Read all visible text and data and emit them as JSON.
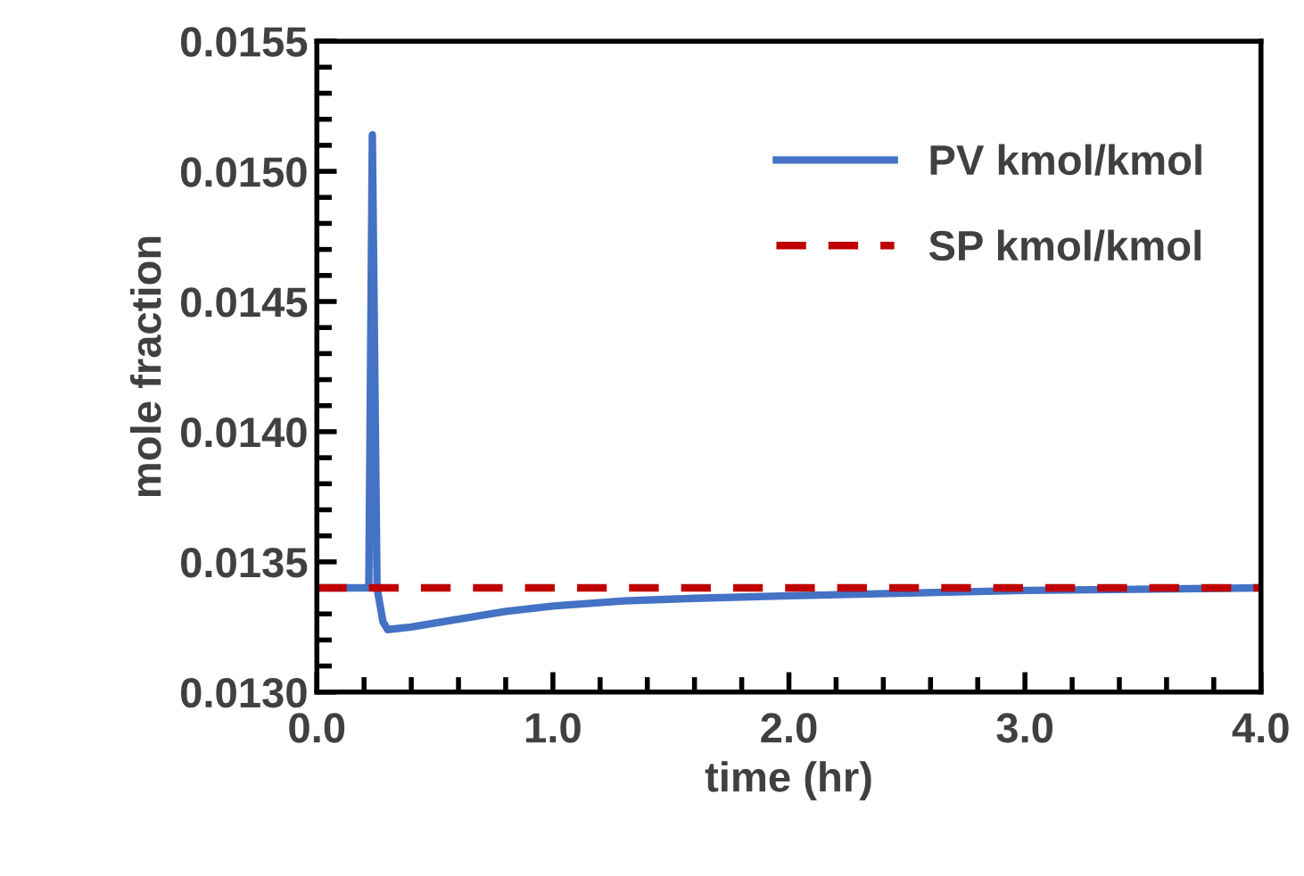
{
  "chart_data": {
    "type": "line",
    "xlabel": "time (hr)",
    "ylabel": "mole fraction",
    "xlim": [
      0,
      4
    ],
    "xticks": [
      {
        "value": 0,
        "label": "0.0"
      },
      {
        "value": 1,
        "label": "1.0"
      },
      {
        "value": 2,
        "label": "2.0"
      },
      {
        "value": 3,
        "label": "3.0"
      },
      {
        "value": 4,
        "label": "4.0"
      }
    ],
    "ylim": [
      0.013,
      0.0155
    ],
    "yticks": [
      {
        "value": 0.013,
        "label": "0.0130"
      },
      {
        "value": 0.0135,
        "label": "0.0135"
      },
      {
        "value": 0.014,
        "label": "0.0140"
      },
      {
        "value": 0.0145,
        "label": "0.0145"
      },
      {
        "value": 0.015,
        "label": "0.0150"
      },
      {
        "value": 0.0155,
        "label": "0.0155"
      }
    ],
    "grid": false,
    "legend": "top right",
    "marker": "none",
    "series": [
      {
        "name": "PV kmol/kmol",
        "color": "#4472c4",
        "line_style": "solid",
        "x": [
          0,
          0.2,
          0.22,
          0.235,
          0.255,
          0.28,
          0.3,
          0.4,
          0.6,
          0.8,
          1.0,
          1.3,
          1.6,
          2.0,
          2.5,
          3.0,
          4.0
        ],
        "values": [
          0.0134,
          0.0134,
          0.0134,
          0.01514,
          0.0134,
          0.01327,
          0.01324,
          0.01325,
          0.01328,
          0.01331,
          0.01333,
          0.01335,
          0.01336,
          0.01337,
          0.01338,
          0.01339,
          0.0134
        ]
      },
      {
        "name": "SP kmol/kmol",
        "color": "#c00000",
        "line_style": "dashed",
        "x": [
          0,
          4
        ],
        "values": [
          0.0134,
          0.0134
        ]
      }
    ]
  }
}
